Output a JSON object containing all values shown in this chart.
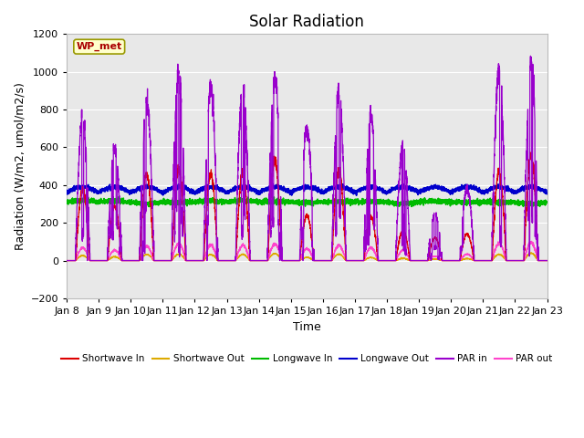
{
  "title": "Solar Radiation",
  "xlabel": "Time",
  "ylabel": "Radiation (W/m2, umol/m2/s)",
  "ylim": [
    -200,
    1200
  ],
  "yticks": [
    -200,
    0,
    200,
    400,
    600,
    800,
    1000,
    1200
  ],
  "station_label": "WP_met",
  "n_days": 15,
  "colors": {
    "shortwave_in": "#dd0000",
    "shortwave_out": "#ddaa00",
    "longwave_in": "#00bb00",
    "longwave_out": "#0000cc",
    "par_in": "#9900cc",
    "par_out": "#ff44cc"
  },
  "legend_labels": [
    "Shortwave In",
    "Shortwave Out",
    "Longwave In",
    "Longwave Out",
    "PAR in",
    "PAR out"
  ],
  "background_color": "#e8e8e8",
  "figure_bg": "#ffffff",
  "title_fontsize": 12,
  "axis_fontsize": 9,
  "tick_fontsize": 8,
  "par_in_peaks": [
    760,
    600,
    840,
    990,
    920,
    910,
    970,
    700,
    890,
    760,
    610,
    250,
    380,
    1010,
    1050
  ],
  "sw_in_peaks": [
    380,
    290,
    460,
    490,
    460,
    470,
    530,
    240,
    480,
    230,
    160,
    120,
    140,
    470,
    560
  ],
  "lw_in_base": 310,
  "lw_out_base": 360
}
